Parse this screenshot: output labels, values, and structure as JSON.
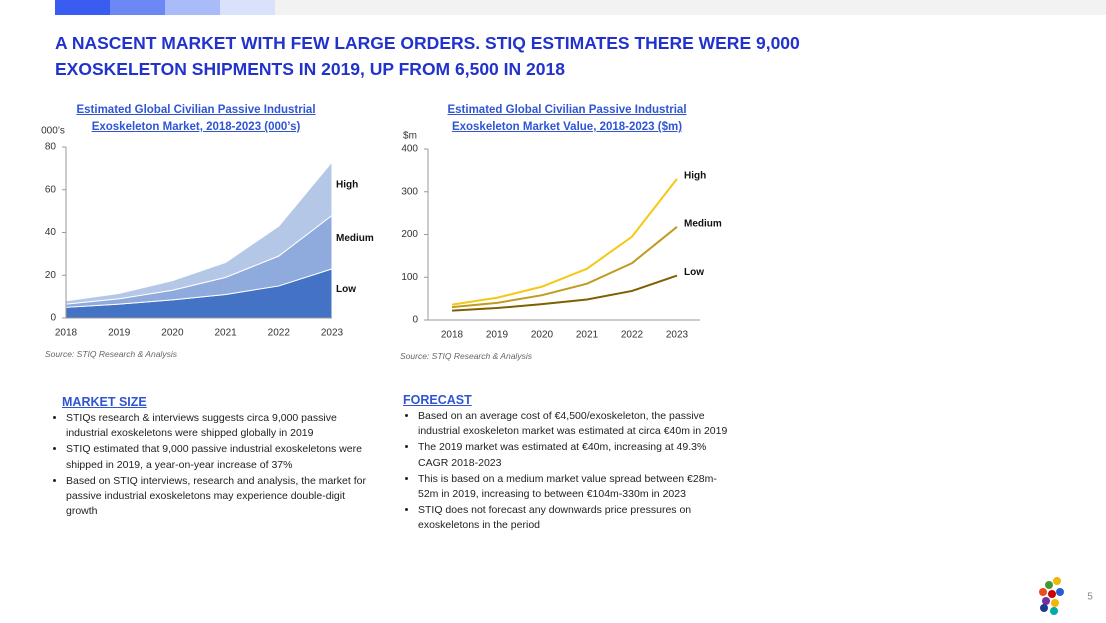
{
  "header": {
    "title": "A NASCENT MARKET WITH FEW LARGE ORDERS. STIQ ESTIMATES THERE WERE 9,000 EXOSKELETON SHIPMENTS IN 2019, UP FROM 6,500 IN 2018"
  },
  "chart_data": [
    {
      "type": "area",
      "stacked": true,
      "title": "Estimated Global Civilian Passive Industrial Exoskeleton Market, 2018-2023 (000’s)",
      "y_unit": "000’s",
      "categories": [
        "2018",
        "2019",
        "2020",
        "2021",
        "2022",
        "2023"
      ],
      "series": [
        {
          "name": "Low",
          "color": "#4472c4",
          "values": [
            5,
            6.5,
            8.5,
            11,
            15,
            23
          ]
        },
        {
          "name": "Medium",
          "color": "#8faadc",
          "values": [
            1.5,
            2.5,
            4.5,
            8,
            14,
            25
          ]
        },
        {
          "name": "High",
          "color": "#b4c7e7",
          "values": [
            1.5,
            2.5,
            4.5,
            7,
            14,
            25
          ]
        }
      ],
      "ylim": [
        0,
        80
      ],
      "yticks": [
        0,
        20,
        40,
        60,
        80
      ],
      "source": "Source: STIQ Research & Analysis"
    },
    {
      "type": "line",
      "title": "Estimated Global Civilian Passive Industrial Exoskeleton Market Value, 2018-2023 ($m)",
      "y_unit": "$m",
      "categories": [
        "2018",
        "2019",
        "2020",
        "2021",
        "2022",
        "2023"
      ],
      "series": [
        {
          "name": "High",
          "color": "#f5c816",
          "values": [
            36,
            52,
            78,
            120,
            195,
            330
          ]
        },
        {
          "name": "Medium",
          "color": "#c09b20",
          "values": [
            30,
            40,
            58,
            85,
            133,
            218
          ]
        },
        {
          "name": "Low",
          "color": "#7f6000",
          "values": [
            22,
            28,
            37,
            48,
            68,
            104
          ]
        }
      ],
      "ylim": [
        0,
        400
      ],
      "yticks": [
        0,
        100,
        200,
        300,
        400
      ],
      "source": "Source: STIQ Research & Analysis"
    }
  ],
  "market_size": {
    "heading": "MARKET SIZE",
    "bullets": [
      "STIQs research & interviews suggests circa 9,000 passive industrial exoskeletons were shipped globally in 2019",
      "STIQ estimated that 9,000 passive industrial exoskeletons were shipped in 2019, a year-on-year increase of 37%",
      "Based on STIQ interviews, research and analysis, the market for passive industrial exoskeletons may experience double-digit growth"
    ]
  },
  "forecast": {
    "heading": "FORECAST",
    "bullets": [
      "Based on an average cost of €4,500/exoskeleton, the passive industrial exoskeleton market was estimated at circa €40m in 2019",
      "The 2019 market was estimated at €40m, increasing at 49.3% CAGR 2018-2023",
      "This is based on a medium market value spread between €28m-52m in 2019, increasing to between €104m-330m in 2023",
      "STIQ does not forecast any downwards price pressures on exoskeletons in the period"
    ]
  },
  "page_number": 5
}
